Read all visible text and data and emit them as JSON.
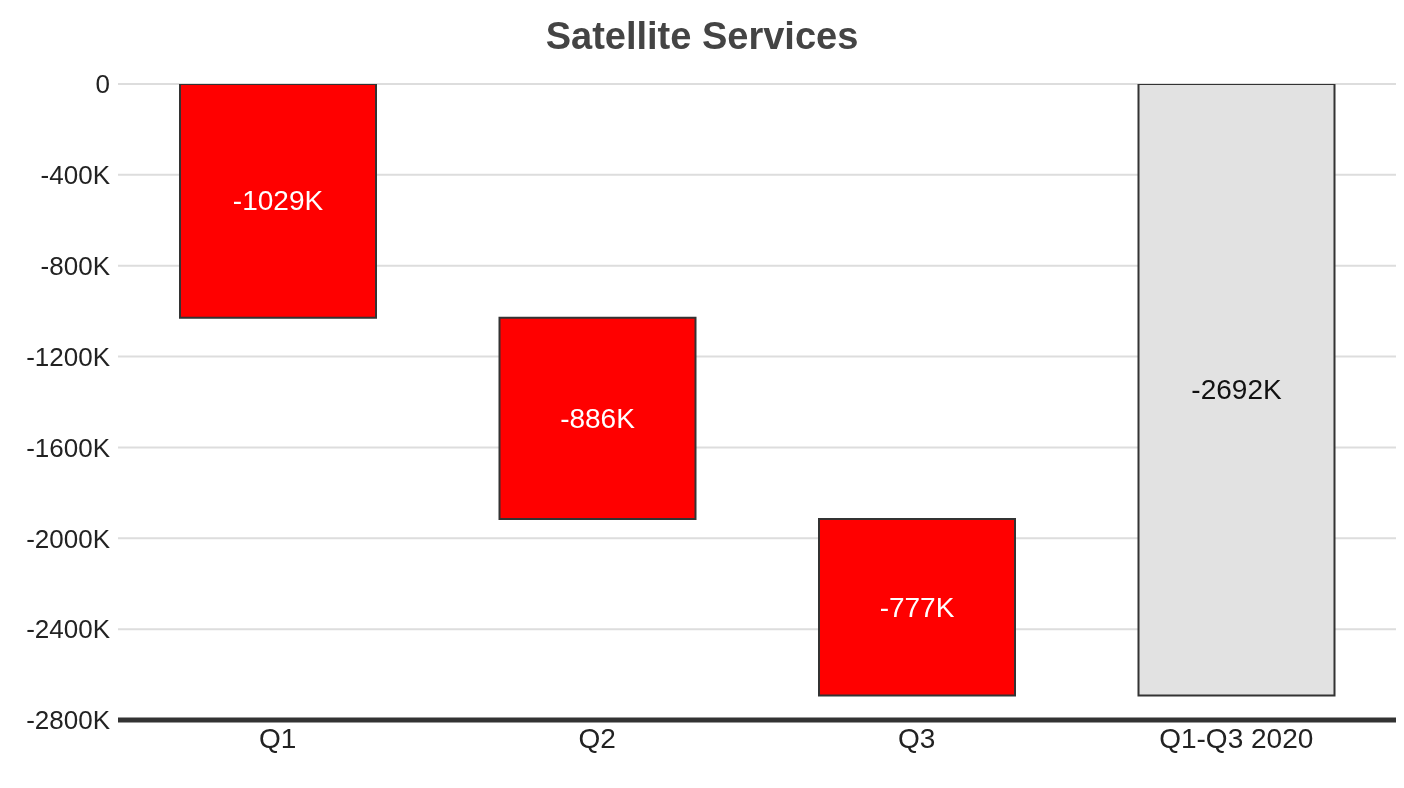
{
  "chart_data": {
    "type": "bar",
    "title": "Satellite Services",
    "categories": [
      "Q1",
      "Q2",
      "Q3",
      "Q1-Q3 2020"
    ],
    "values": [
      -1029,
      -886,
      -777,
      -2692
    ],
    "base": [
      0,
      -1029,
      -1915,
      0
    ],
    "colors": [
      "#ff0000",
      "#ff0000",
      "#ff0000",
      "#e2e2e2"
    ],
    "value_labels": [
      "-1029K",
      "-886K",
      "-777K",
      "-2692K"
    ],
    "ylim": [
      -2800,
      0
    ],
    "yticks": [
      0,
      {
        "value": -400,
        "label": "-400K"
      },
      {
        "value": -800,
        "label": "-800K"
      },
      {
        "value": -1200,
        "label": "-1200K"
      },
      {
        "value": -1600,
        "label": "-1600K"
      },
      {
        "value": -2000,
        "label": "-2000K"
      },
      {
        "value": -2400,
        "label": "-2400K"
      },
      {
        "value": -2800,
        "label": "-2800K"
      }
    ],
    "grid": "y"
  }
}
